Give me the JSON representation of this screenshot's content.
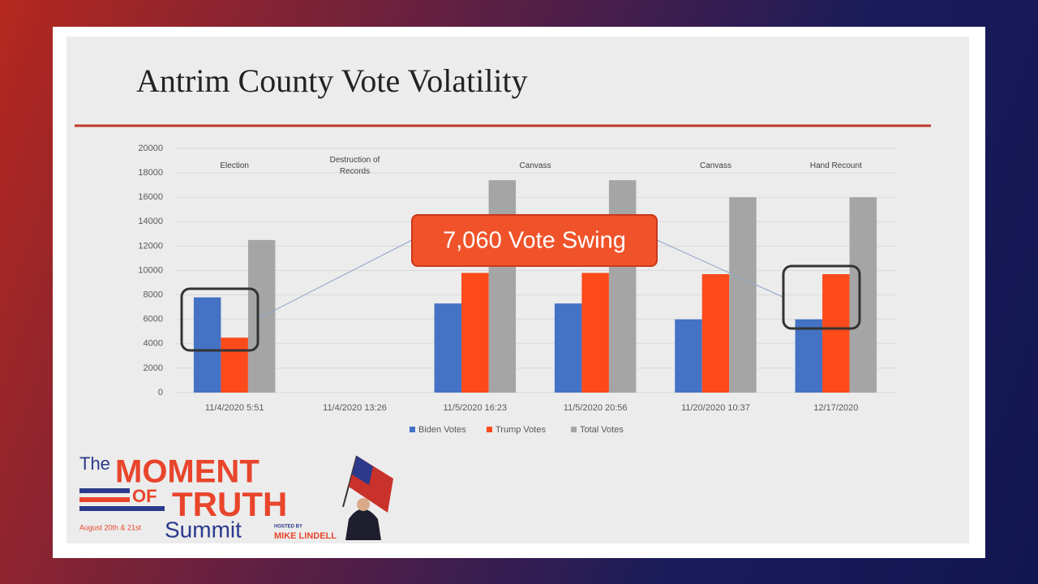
{
  "chart_data": {
    "type": "bar",
    "title": "Antrim County Vote Volatility",
    "categories": [
      "11/4/2020 5:51",
      "11/4/2020 13:26",
      "11/5/2020 16:23",
      "11/5/2020 20:56",
      "11/20/2020 10:37",
      "12/17/2020"
    ],
    "phase_labels": [
      "Election",
      "Destruction of Records",
      "Canvass",
      null,
      "Canvass",
      "Hand Recount"
    ],
    "series": [
      {
        "name": "Biden Votes",
        "color": "#4472c4",
        "values": [
          7800,
          null,
          7300,
          7300,
          6000,
          6000
        ]
      },
      {
        "name": "Trump Votes",
        "color": "#fc4a1a",
        "values": [
          4500,
          null,
          9800,
          9800,
          9700,
          9700
        ]
      },
      {
        "name": "Total Votes",
        "color": "#a5a5a5",
        "values": [
          12500,
          null,
          17400,
          17400,
          16000,
          16000
        ]
      }
    ],
    "ylim": [
      0,
      20000
    ],
    "yticks": [
      0,
      2000,
      4000,
      6000,
      8000,
      10000,
      12000,
      14000,
      16000,
      18000,
      20000
    ],
    "grid": true,
    "legend": "bottom",
    "annotation": "7,060 Vote Swing"
  },
  "logo": {
    "the": "The",
    "moment": "MOMENT",
    "of": "OF",
    "truth": "TRUTH",
    "summit": "Summit",
    "dates": "August 20th & 21st",
    "hosted_by": "HOSTED BY",
    "host": "MIKE LINDELL"
  }
}
